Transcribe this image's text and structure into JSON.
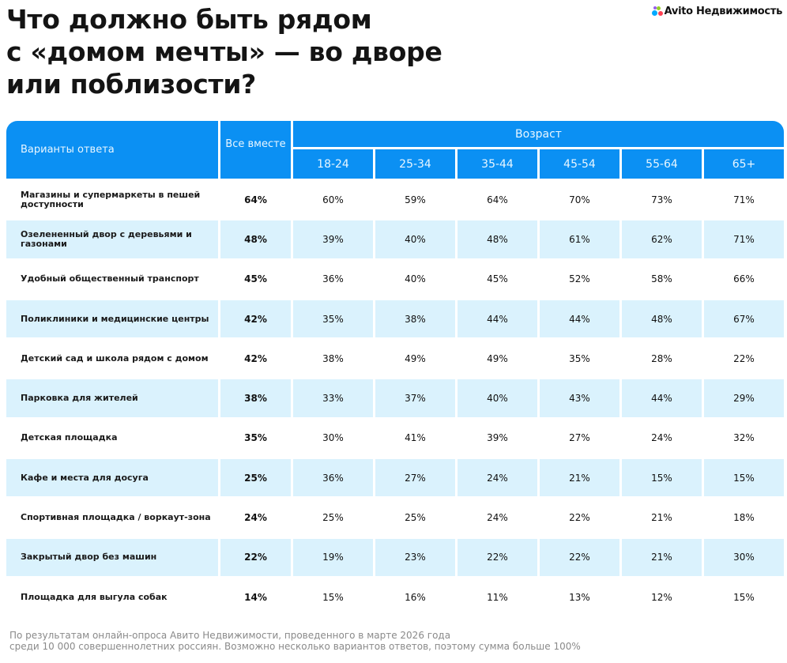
{
  "title": [
    "Что должно быть рядом",
    "с «домом мечты» — во дворе",
    "или поблизости?"
  ],
  "logo": {
    "text": "Avito Недвижимость",
    "dot_colors": [
      "#00aaff",
      "#97cf26",
      "#ff4053",
      "#965eeb"
    ]
  },
  "colors": {
    "header": "#0b90f3",
    "row_alt": "#daf2fd"
  },
  "chart_data": {
    "type": "table",
    "header": {
      "options": "Варианты ответа",
      "all": "Все вместе",
      "age_group": "Возраст"
    },
    "columns": [
      "18-24",
      "25-34",
      "35-44",
      "45-54",
      "55-64",
      "65+"
    ],
    "rows": [
      {
        "label": "Магазины и супермаркеты в пешей доступности",
        "all": "64%",
        "values": [
          "60%",
          "59%",
          "64%",
          "70%",
          "73%",
          "71%"
        ]
      },
      {
        "label": "Озелененный двор с деревьями и газонами",
        "all": "48%",
        "values": [
          "39%",
          "40%",
          "48%",
          "61%",
          "62%",
          "71%"
        ]
      },
      {
        "label": "Удобный общественный транспорт",
        "all": "45%",
        "values": [
          "36%",
          "40%",
          "45%",
          "52%",
          "58%",
          "66%"
        ]
      },
      {
        "label": "Поликлиники и медицинские центры",
        "all": "42%",
        "values": [
          "35%",
          "38%",
          "44%",
          "44%",
          "48%",
          "67%"
        ]
      },
      {
        "label": "Детский сад и школа рядом с домом",
        "all": "42%",
        "values": [
          "38%",
          "49%",
          "49%",
          "35%",
          "28%",
          "22%"
        ]
      },
      {
        "label": "Парковка для жителей",
        "all": "38%",
        "values": [
          "33%",
          "37%",
          "40%",
          "43%",
          "44%",
          "29%"
        ]
      },
      {
        "label": "Детская площадка",
        "all": "35%",
        "values": [
          "30%",
          "41%",
          "39%",
          "27%",
          "24%",
          "32%"
        ]
      },
      {
        "label": "Кафе и места для досуга",
        "all": "25%",
        "values": [
          "36%",
          "27%",
          "24%",
          "21%",
          "15%",
          "15%"
        ]
      },
      {
        "label": "Спортивная площадка / воркаут-зона",
        "all": "24%",
        "values": [
          "25%",
          "25%",
          "24%",
          "22%",
          "21%",
          "18%"
        ]
      },
      {
        "label": "Закрытый двор без машин",
        "all": "22%",
        "values": [
          "19%",
          "23%",
          "22%",
          "22%",
          "21%",
          "30%"
        ]
      },
      {
        "label": "Площадка для выгула собак",
        "all": "14%",
        "values": [
          "15%",
          "16%",
          "11%",
          "13%",
          "12%",
          "15%"
        ]
      }
    ]
  },
  "footer": [
    "По результатам онлайн-опроса Авито Недвижимости, проведенного в марте 2026 года",
    "среди 10 000 совершеннолетних россиян. Возможно несколько вариантов ответов, поэтому сумма больше 100%"
  ]
}
